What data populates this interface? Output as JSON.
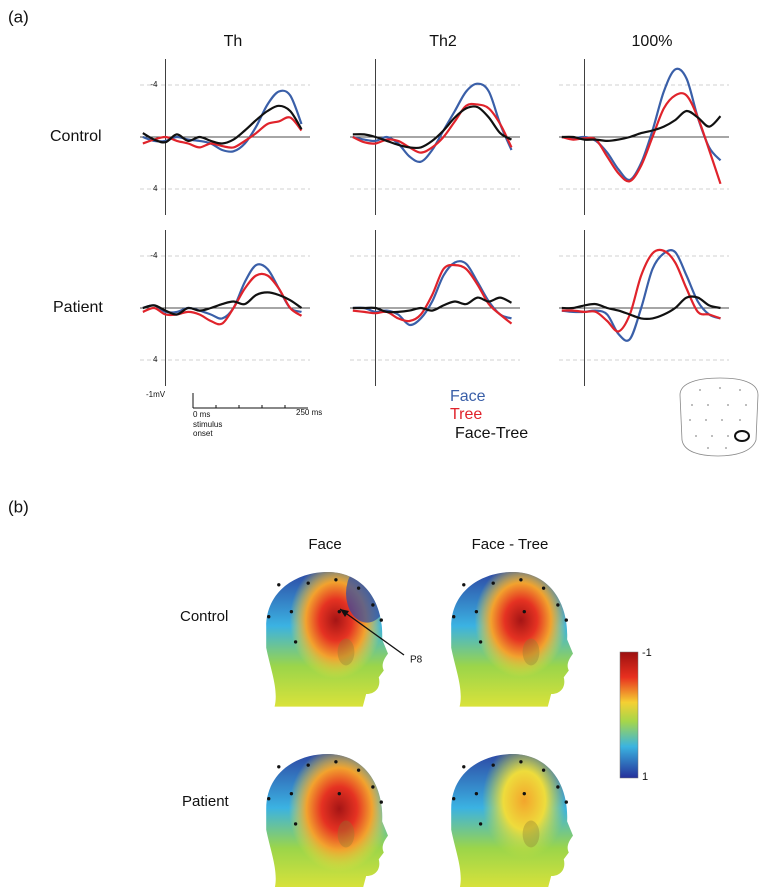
{
  "panel_a": {
    "label": "(a)",
    "rows": [
      "Control",
      "Patient"
    ],
    "scale_bar": {
      "amplitude": "-1mV",
      "start": "0 ms",
      "end": "250 ms",
      "onset_1": "stimulus",
      "onset_2": "onset"
    }
  },
  "chart_data": [
    {
      "type": "line",
      "title": "Th",
      "x": [
        -40,
        -20,
        0,
        20,
        40,
        60,
        80,
        100,
        120,
        140,
        160,
        180,
        200,
        220,
        240
      ],
      "xlim": [
        -45,
        255
      ],
      "ylim": [
        6,
        -6
      ],
      "yticks": [
        -4,
        4
      ],
      "series": [
        {
          "name": "Face",
          "color": "#3a5fa8",
          "values": [
            0,
            0.3,
            0.3,
            0,
            0.2,
            0.3,
            0.5,
            1,
            1.1,
            0.5,
            -0.8,
            -2.5,
            -3.5,
            -3.2,
            -1
          ]
        },
        {
          "name": "Tree",
          "color": "#e0232b",
          "values": [
            0.5,
            0.2,
            0,
            0.3,
            0.5,
            0.8,
            0.5,
            0.7,
            0.8,
            0.3,
            -0.3,
            -1,
            -1.2,
            -1.5,
            -0.5
          ]
        },
        {
          "name": "Face-Tree",
          "color": "#111111",
          "values": [
            -0.3,
            0.2,
            0.4,
            -0.2,
            0.3,
            0,
            0.3,
            0.5,
            0.2,
            -0.5,
            -1.3,
            -2,
            -2.4,
            -2,
            -0.6
          ]
        }
      ]
    },
    {
      "type": "line",
      "title": "Th2",
      "x": [
        -40,
        -20,
        0,
        20,
        40,
        60,
        80,
        100,
        120,
        140,
        160,
        180,
        200,
        220,
        240
      ],
      "xlim": [
        -45,
        255
      ],
      "ylim": [
        6,
        -6
      ],
      "yticks": [
        -4,
        4
      ],
      "series": [
        {
          "name": "Face",
          "color": "#3a5fa8",
          "values": [
            0,
            0.2,
            0.3,
            0,
            0.5,
            1.5,
            1.9,
            1,
            -0.5,
            -2,
            -3.5,
            -4.1,
            -3.5,
            -1,
            1
          ]
        },
        {
          "name": "Tree",
          "color": "#e0232b",
          "values": [
            0,
            0.4,
            0.5,
            0.2,
            0.3,
            0.8,
            1.2,
            0.8,
            0,
            -1.2,
            -2.4,
            -2.5,
            -2.2,
            -1,
            0.8
          ]
        },
        {
          "name": "Face-Tree",
          "color": "#111111",
          "values": [
            -0.2,
            -0.2,
            0,
            0.3,
            0.6,
            0.8,
            0.8,
            0.3,
            -0.5,
            -1.5,
            -2.2,
            -2.3,
            -1.5,
            -0.3,
            0.2
          ]
        }
      ]
    },
    {
      "type": "line",
      "title": "100%",
      "x": [
        -40,
        -20,
        0,
        20,
        40,
        60,
        80,
        100,
        120,
        140,
        160,
        180,
        200,
        220,
        240
      ],
      "xlim": [
        -45,
        255
      ],
      "ylim": [
        6,
        -6
      ],
      "yticks": [
        -4,
        4
      ],
      "series": [
        {
          "name": "Face",
          "color": "#3a5fa8",
          "values": [
            0,
            0.1,
            0,
            0.3,
            1.2,
            2.5,
            3.3,
            2,
            -0.5,
            -3.5,
            -5.2,
            -4.5,
            -1.5,
            0.8,
            1.8
          ]
        },
        {
          "name": "Tree",
          "color": "#e0232b",
          "values": [
            0,
            0.2,
            0.1,
            0.2,
            1.5,
            2.8,
            3.4,
            2.2,
            0,
            -2.2,
            -3.2,
            -3.2,
            -1.5,
            1,
            3.6
          ]
        },
        {
          "name": "Face-Tree",
          "color": "#111111",
          "values": [
            0,
            0,
            0.2,
            0.2,
            0.3,
            0.2,
            0,
            -0.3,
            -0.5,
            -0.8,
            -1.3,
            -2,
            -1.5,
            -0.8,
            -1.6
          ]
        }
      ]
    },
    {
      "type": "line",
      "x": [
        -40,
        -20,
        0,
        20,
        40,
        60,
        80,
        100,
        120,
        140,
        160,
        180,
        200,
        220,
        240
      ],
      "xlim": [
        -45,
        255
      ],
      "ylim": [
        6,
        -6
      ],
      "yticks": [
        -4,
        4
      ],
      "series": [
        {
          "name": "Face",
          "color": "#3a5fa8",
          "values": [
            0,
            -0.2,
            0.3,
            0.3,
            0,
            0.2,
            0.5,
            0.8,
            0,
            -2,
            -3.3,
            -3,
            -1.5,
            0,
            0.3
          ]
        },
        {
          "name": "Tree",
          "color": "#e0232b",
          "values": [
            0.3,
            0,
            0.5,
            0.5,
            0.3,
            0.5,
            1,
            1.2,
            0,
            -1.5,
            -2.5,
            -2.5,
            -1.5,
            0,
            0.6
          ]
        },
        {
          "name": "Face-Tree",
          "color": "#111111",
          "values": [
            0,
            -0.2,
            0.2,
            0.5,
            0,
            0.2,
            0,
            -0.3,
            -0.5,
            -0.3,
            -1,
            -1.2,
            -1,
            -0.6,
            0
          ]
        }
      ]
    },
    {
      "type": "line",
      "x": [
        -40,
        -20,
        0,
        20,
        40,
        60,
        80,
        100,
        120,
        140,
        160,
        180,
        200,
        220,
        240
      ],
      "xlim": [
        -45,
        255
      ],
      "ylim": [
        6,
        -6
      ],
      "yticks": [
        -4,
        4
      ],
      "series": [
        {
          "name": "Face",
          "color": "#3a5fa8",
          "values": [
            0,
            0,
            0.3,
            0.2,
            0.5,
            1.3,
            0.8,
            -0.5,
            -2.5,
            -3.5,
            -3.4,
            -2,
            -0.5,
            0.5,
            0.8
          ]
        },
        {
          "name": "Tree",
          "color": "#e0232b",
          "values": [
            0.2,
            0.3,
            0.4,
            0.3,
            0.8,
            1,
            0.5,
            -1,
            -3,
            -3.3,
            -3,
            -1.8,
            -0.3,
            0.5,
            1.2
          ]
        },
        {
          "name": "Face-Tree",
          "color": "#111111",
          "values": [
            0,
            0,
            0,
            0.3,
            0.3,
            0.2,
            0,
            0.2,
            -0.2,
            -0.5,
            -0.3,
            -0.8,
            -0.5,
            -0.8,
            -0.4
          ]
        }
      ]
    },
    {
      "type": "line",
      "x": [
        -40,
        -20,
        0,
        20,
        40,
        60,
        80,
        100,
        120,
        140,
        160,
        180,
        200,
        220,
        240
      ],
      "xlim": [
        -45,
        255
      ],
      "ylim": [
        6,
        -6
      ],
      "yticks": [
        -4,
        4
      ],
      "series": [
        {
          "name": "Face",
          "color": "#3a5fa8",
          "values": [
            0.2,
            0.3,
            0.3,
            0.2,
            0.5,
            2,
            2.4,
            0,
            -3,
            -4.2,
            -4.3,
            -2.5,
            -0.5,
            0.5,
            0.8
          ]
        },
        {
          "name": "Tree",
          "color": "#e0232b",
          "values": [
            0.2,
            0.2,
            0.3,
            0.3,
            1,
            1.8,
            0.5,
            -2.5,
            -4.2,
            -4.4,
            -3.5,
            -1.5,
            0.3,
            0.5,
            0.8
          ]
        },
        {
          "name": "Face-Tree",
          "color": "#111111",
          "values": [
            0,
            0,
            -0.2,
            -0.3,
            0,
            0.2,
            0.5,
            0.8,
            0.8,
            0.5,
            0,
            -0.8,
            -0.8,
            -0.2,
            0
          ]
        }
      ]
    }
  ],
  "panel_b": {
    "label": "(b)",
    "columns": [
      "Face",
      "Face - Tree"
    ],
    "rows": [
      "Control",
      "Patient"
    ],
    "electrode": "P8",
    "colorbar": {
      "ticks": [
        -1,
        1
      ]
    }
  }
}
